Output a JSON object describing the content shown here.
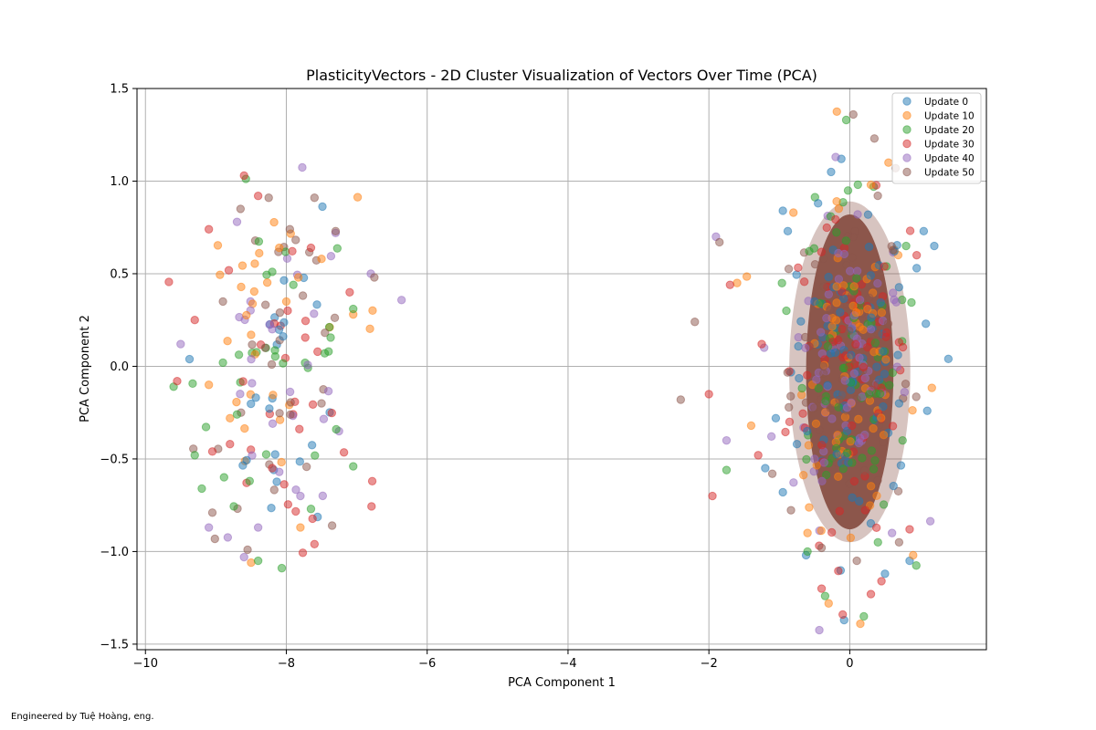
{
  "chart_data": {
    "type": "scatter",
    "title": "PlasticityVectors - 2D Cluster Visualization of Vectors Over Time (PCA)",
    "xlabel": "PCA Component 1",
    "ylabel": "PCA Component 2",
    "xlim": [
      -10.12,
      1.94
    ],
    "ylim": [
      -1.53,
      1.5
    ],
    "xticks": [
      -10,
      -8,
      -6,
      -4,
      -2,
      0
    ],
    "xtick_labels": [
      "−10",
      "−8",
      "−6",
      "−4",
      "−2",
      "0"
    ],
    "yticks": [
      -1.5,
      -1.0,
      -0.5,
      0.0,
      0.5,
      1.0,
      1.5
    ],
    "ytick_labels": [
      "−1.5",
      "−1.0",
      "−0.5",
      "0.0",
      "0.5",
      "1.0",
      "1.5"
    ],
    "grid": true,
    "legend_position": "top-right",
    "marker_alpha": 0.5,
    "series": [
      {
        "name": "Update 0",
        "color": "#1f77b4",
        "points": [
          [
            -0.95,
            0.84
          ],
          [
            -0.88,
            0.73
          ],
          [
            -0.45,
            0.88
          ],
          [
            1.05,
            0.73
          ],
          [
            1.2,
            0.65
          ],
          [
            1.4,
            0.04
          ],
          [
            1.08,
            0.23
          ],
          [
            1.1,
            -0.24
          ],
          [
            -0.95,
            -0.68
          ],
          [
            -0.62,
            -1.02
          ],
          [
            -0.08,
            -1.37
          ],
          [
            0.85,
            -1.05
          ],
          [
            0.95,
            0.53
          ],
          [
            -1.05,
            -0.28
          ],
          [
            0.5,
            -1.12
          ],
          [
            -0.12,
            1.12
          ],
          [
            -1.2,
            -0.55
          ],
          [
            -0.75,
            -0.42
          ],
          [
            0.7,
            -0.2
          ],
          [
            -0.5,
            0.35
          ]
        ]
      },
      {
        "name": "Update 10",
        "color": "#ff7f0e",
        "points": [
          [
            -9.1,
            -0.1
          ],
          [
            -8.5,
            0.17
          ],
          [
            -8.1,
            0.64
          ],
          [
            -8.0,
            0.35
          ],
          [
            -7.5,
            0.58
          ],
          [
            -8.8,
            -0.28
          ],
          [
            -8.5,
            -1.06
          ],
          [
            -7.8,
            -0.87
          ],
          [
            -7.05,
            0.28
          ],
          [
            -0.3,
            -1.28
          ],
          [
            0.15,
            -1.39
          ],
          [
            -0.8,
            0.83
          ],
          [
            0.55,
            1.1
          ],
          [
            -1.4,
            -0.32
          ],
          [
            0.9,
            -1.02
          ],
          [
            -1.6,
            0.45
          ],
          [
            0.3,
            0.98
          ],
          [
            -0.6,
            -0.9
          ]
        ]
      },
      {
        "name": "Update 20",
        "color": "#2ca02c",
        "points": [
          [
            -9.6,
            -0.11
          ],
          [
            -9.3,
            -0.48
          ],
          [
            -9.2,
            -0.66
          ],
          [
            -8.4,
            -1.05
          ],
          [
            -7.65,
            -0.77
          ],
          [
            -7.05,
            -0.54
          ],
          [
            -7.05,
            0.31
          ],
          [
            -8.2,
            0.51
          ],
          [
            -7.4,
            0.08
          ],
          [
            -8.7,
            -0.26
          ],
          [
            -0.05,
            1.33
          ],
          [
            0.2,
            -1.35
          ],
          [
            -0.35,
            -1.24
          ],
          [
            -1.75,
            -0.56
          ],
          [
            0.8,
            0.65
          ],
          [
            -0.9,
            0.3
          ],
          [
            0.75,
            -0.4
          ],
          [
            -0.6,
            -1.0
          ],
          [
            0.4,
            -0.95
          ],
          [
            -8.9,
            0.02
          ],
          [
            -7.9,
            0.44
          ]
        ]
      },
      {
        "name": "Update 30",
        "color": "#d62728",
        "points": [
          [
            -8.6,
            1.03
          ],
          [
            -8.4,
            0.92
          ],
          [
            -9.1,
            0.74
          ],
          [
            -9.55,
            -0.08
          ],
          [
            -9.05,
            -0.46
          ],
          [
            -8.8,
            -0.42
          ],
          [
            -7.65,
            0.64
          ],
          [
            -7.6,
            -0.96
          ],
          [
            -6.78,
            -0.62
          ],
          [
            -7.1,
            0.4
          ],
          [
            -9.3,
            0.25
          ],
          [
            -8.2,
            -0.55
          ],
          [
            -1.95,
            -0.7
          ],
          [
            -0.1,
            -1.34
          ],
          [
            0.3,
            -1.23
          ],
          [
            0.45,
            -1.16
          ],
          [
            -0.4,
            -1.2
          ],
          [
            -1.7,
            0.44
          ],
          [
            -1.25,
            0.12
          ],
          [
            0.95,
            0.6
          ],
          [
            0.85,
            -0.88
          ],
          [
            -1.3,
            -0.48
          ],
          [
            -2.0,
            -0.15
          ]
        ]
      },
      {
        "name": "Update 40",
        "color": "#9467bd",
        "points": [
          [
            -9.5,
            0.12
          ],
          [
            -9.1,
            -0.87
          ],
          [
            -8.7,
            0.78
          ],
          [
            -8.6,
            -1.03
          ],
          [
            -8.4,
            -0.87
          ],
          [
            -7.8,
            -0.7
          ],
          [
            -6.8,
            0.5
          ],
          [
            -8.1,
            -0.57
          ],
          [
            -7.3,
            0.72
          ],
          [
            -8.2,
            0.2
          ],
          [
            -1.9,
            0.7
          ],
          [
            -1.75,
            -0.4
          ],
          [
            -0.2,
            1.13
          ],
          [
            0.6,
            -0.9
          ],
          [
            0.3,
            0.2
          ],
          [
            -0.5,
            -0.5
          ]
        ]
      },
      {
        "name": "Update 50",
        "color": "#8c564b",
        "points": [
          [
            -8.65,
            0.85
          ],
          [
            -8.25,
            0.91
          ],
          [
            -7.95,
            0.74
          ],
          [
            -7.6,
            0.91
          ],
          [
            -7.3,
            0.73
          ],
          [
            -6.75,
            0.48
          ],
          [
            -7.35,
            -0.86
          ],
          [
            -8.55,
            -0.99
          ],
          [
            -9.05,
            -0.79
          ],
          [
            -2.4,
            -0.18
          ],
          [
            -1.85,
            0.67
          ],
          [
            -2.2,
            0.24
          ],
          [
            0.05,
            1.36
          ],
          [
            0.35,
            1.23
          ],
          [
            0.65,
            1.07
          ],
          [
            -0.4,
            -0.98
          ],
          [
            0.1,
            -1.05
          ],
          [
            0.7,
            -0.95
          ],
          [
            -8.3,
            0.1
          ],
          [
            -7.5,
            -0.2
          ],
          [
            -8.9,
            0.35
          ],
          [
            -1.1,
            -0.58
          ]
        ]
      }
    ]
  },
  "footer": {
    "text": "Engineered by Tuệ Hoàng, eng."
  }
}
